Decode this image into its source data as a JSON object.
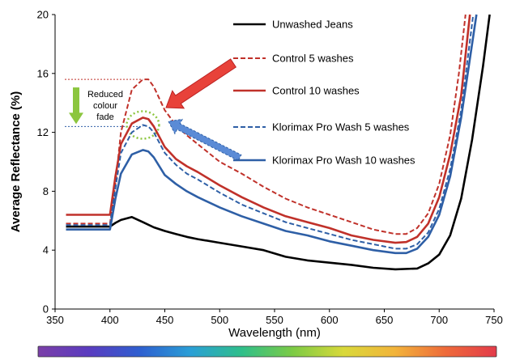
{
  "chart_data": {
    "type": "line",
    "title": "",
    "xlabel": "Wavelength (nm)",
    "ylabel": "Average Reflectance (%)",
    "xlim": [
      350,
      750
    ],
    "ylim": [
      0,
      20
    ],
    "xticks": [
      350,
      400,
      450,
      500,
      550,
      600,
      650,
      700,
      750
    ],
    "yticks": [
      0,
      4,
      8,
      12,
      16,
      20
    ],
    "grid": false,
    "legend_position": "top-right",
    "series": [
      {
        "name": "Unwashed Jeans",
        "color": "#000000",
        "dash": "solid",
        "points": [
          [
            360,
            5.6
          ],
          [
            395,
            5.6
          ],
          [
            400,
            5.6
          ],
          [
            405,
            5.85
          ],
          [
            410,
            6.05
          ],
          [
            420,
            6.25
          ],
          [
            430,
            5.9
          ],
          [
            440,
            5.55
          ],
          [
            450,
            5.3
          ],
          [
            460,
            5.1
          ],
          [
            470,
            4.9
          ],
          [
            480,
            4.75
          ],
          [
            500,
            4.5
          ],
          [
            520,
            4.25
          ],
          [
            540,
            4.0
          ],
          [
            560,
            3.55
          ],
          [
            580,
            3.3
          ],
          [
            600,
            3.15
          ],
          [
            620,
            3.0
          ],
          [
            640,
            2.8
          ],
          [
            660,
            2.7
          ],
          [
            680,
            2.75
          ],
          [
            690,
            3.1
          ],
          [
            700,
            3.7
          ],
          [
            710,
            5.0
          ],
          [
            720,
            7.5
          ],
          [
            730,
            11.5
          ],
          [
            740,
            16.5
          ],
          [
            746,
            20.0
          ]
        ]
      },
      {
        "name": "Control 5 washes",
        "color": "#c0312a",
        "dash": "dashed",
        "points": [
          [
            360,
            5.8
          ],
          [
            395,
            5.8
          ],
          [
            400,
            5.8
          ],
          [
            405,
            8.5
          ],
          [
            410,
            12.0
          ],
          [
            420,
            14.9
          ],
          [
            430,
            15.6
          ],
          [
            435,
            15.6
          ],
          [
            440,
            15.1
          ],
          [
            450,
            13.5
          ],
          [
            460,
            12.5
          ],
          [
            470,
            11.8
          ],
          [
            480,
            11.2
          ],
          [
            500,
            10.0
          ],
          [
            520,
            9.2
          ],
          [
            540,
            8.3
          ],
          [
            560,
            7.5
          ],
          [
            580,
            6.9
          ],
          [
            600,
            6.4
          ],
          [
            620,
            5.9
          ],
          [
            640,
            5.4
          ],
          [
            660,
            5.1
          ],
          [
            670,
            5.1
          ],
          [
            680,
            5.5
          ],
          [
            690,
            6.5
          ],
          [
            700,
            8.5
          ],
          [
            710,
            11.8
          ],
          [
            718,
            16.0
          ],
          [
            724,
            20.0
          ]
        ]
      },
      {
        "name": "Control 10 washes",
        "color": "#c0312a",
        "dash": "solid",
        "points": [
          [
            360,
            6.4
          ],
          [
            395,
            6.4
          ],
          [
            400,
            6.4
          ],
          [
            405,
            9.0
          ],
          [
            410,
            11.2
          ],
          [
            420,
            12.6
          ],
          [
            430,
            13.0
          ],
          [
            435,
            12.9
          ],
          [
            440,
            12.4
          ],
          [
            450,
            11.0
          ],
          [
            460,
            10.2
          ],
          [
            470,
            9.7
          ],
          [
            480,
            9.3
          ],
          [
            500,
            8.4
          ],
          [
            520,
            7.6
          ],
          [
            540,
            6.9
          ],
          [
            560,
            6.3
          ],
          [
            580,
            5.9
          ],
          [
            600,
            5.5
          ],
          [
            620,
            5.0
          ],
          [
            640,
            4.7
          ],
          [
            660,
            4.5
          ],
          [
            670,
            4.55
          ],
          [
            680,
            4.9
          ],
          [
            690,
            5.8
          ],
          [
            700,
            7.6
          ],
          [
            710,
            10.5
          ],
          [
            720,
            14.5
          ],
          [
            728,
            20.0
          ]
        ]
      },
      {
        "name": "Klorimax Pro Wash  5 washes",
        "color": "#2e5fa6",
        "dash": "dashed",
        "points": [
          [
            360,
            5.7
          ],
          [
            395,
            5.7
          ],
          [
            400,
            5.7
          ],
          [
            405,
            8.2
          ],
          [
            410,
            10.6
          ],
          [
            420,
            12.0
          ],
          [
            430,
            12.5
          ],
          [
            435,
            12.4
          ],
          [
            440,
            12.0
          ],
          [
            450,
            10.6
          ],
          [
            460,
            9.8
          ],
          [
            470,
            9.2
          ],
          [
            480,
            8.8
          ],
          [
            500,
            7.9
          ],
          [
            520,
            7.1
          ],
          [
            540,
            6.5
          ],
          [
            560,
            5.9
          ],
          [
            580,
            5.5
          ],
          [
            600,
            5.1
          ],
          [
            620,
            4.7
          ],
          [
            640,
            4.4
          ],
          [
            660,
            4.1
          ],
          [
            670,
            4.1
          ],
          [
            680,
            4.4
          ],
          [
            690,
            5.2
          ],
          [
            700,
            6.8
          ],
          [
            710,
            9.5
          ],
          [
            720,
            13.5
          ],
          [
            731,
            20.0
          ]
        ]
      },
      {
        "name": "Klorimax Pro Wash 10  washes",
        "color": "#2e5fa6",
        "dash": "solid",
        "points": [
          [
            360,
            5.4
          ],
          [
            395,
            5.4
          ],
          [
            400,
            5.4
          ],
          [
            405,
            7.5
          ],
          [
            410,
            9.2
          ],
          [
            420,
            10.5
          ],
          [
            430,
            10.8
          ],
          [
            435,
            10.7
          ],
          [
            440,
            10.3
          ],
          [
            450,
            9.1
          ],
          [
            460,
            8.5
          ],
          [
            470,
            8.0
          ],
          [
            480,
            7.6
          ],
          [
            500,
            6.9
          ],
          [
            520,
            6.3
          ],
          [
            540,
            5.8
          ],
          [
            560,
            5.3
          ],
          [
            580,
            5.0
          ],
          [
            600,
            4.6
          ],
          [
            620,
            4.3
          ],
          [
            640,
            4.0
          ],
          [
            660,
            3.8
          ],
          [
            670,
            3.8
          ],
          [
            680,
            4.1
          ],
          [
            690,
            4.9
          ],
          [
            700,
            6.4
          ],
          [
            710,
            9.0
          ],
          [
            720,
            13.0
          ],
          [
            734,
            20.0
          ]
        ]
      }
    ],
    "annotations": {
      "fade_text": [
        "Reduced",
        "colour",
        "fade"
      ],
      "fade_top": 15.6,
      "fade_bottom": 12.4,
      "fade_x_end": 430,
      "ellipse_center": [
        430,
        12.5
      ],
      "arrow_colors": {
        "control": "#e8423a",
        "klorimax": "#5b8bd6",
        "fade": "#8cc63f"
      }
    },
    "spectrum_colors": [
      "#7b3fa8",
      "#5a3cc0",
      "#2e5fd0",
      "#2a9fd6",
      "#2fbf8a",
      "#7ccb45",
      "#d9d93a",
      "#f2b43a",
      "#ee6a3a",
      "#e33b4a"
    ]
  }
}
